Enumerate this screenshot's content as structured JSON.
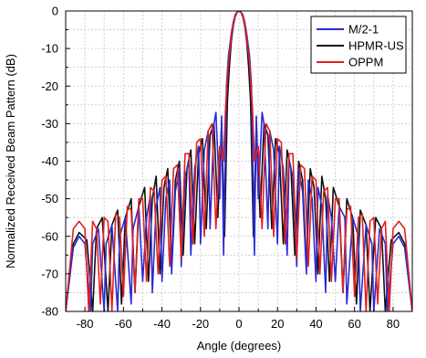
{
  "chart_data": {
    "type": "line",
    "title": "",
    "xlabel": "Angle (degrees)",
    "ylabel": "Normalized Received Beam Pattern (dB)",
    "xlim": [
      -90,
      90
    ],
    "ylim": [
      -80,
      0
    ],
    "xticks": [
      -80,
      -60,
      -40,
      -20,
      0,
      20,
      40,
      60,
      80
    ],
    "yticks": [
      0,
      -10,
      -20,
      -30,
      -40,
      -50,
      -60,
      -70,
      -80
    ],
    "grid": true,
    "legend_position": "top-right",
    "series": [
      {
        "name": "M/2-1",
        "color": "#2a2ad8",
        "x": [
          -90,
          -86,
          -83,
          -80,
          -77,
          -76,
          -73,
          -70,
          -69,
          -66,
          -63,
          -62,
          -59,
          -56,
          -55,
          -52,
          -50,
          -48,
          -46,
          -45,
          -43,
          -41,
          -40,
          -38,
          -36,
          -35,
          -33,
          -31,
          -30,
          -28,
          -26,
          -25,
          -23,
          -21,
          -20,
          -18,
          -16,
          -15,
          -13,
          -12,
          -10,
          -9,
          -8,
          -6.5,
          -5.5,
          -4,
          -3,
          -2,
          -1,
          0,
          1,
          2,
          3,
          4,
          5.5,
          6.5,
          8,
          9,
          10,
          12,
          13,
          15,
          16,
          18,
          20,
          21,
          23,
          25,
          26,
          28,
          30,
          31,
          33,
          35,
          36,
          38,
          40,
          41,
          43,
          45,
          46,
          48,
          50,
          52,
          55,
          56,
          59,
          62,
          63,
          66,
          69,
          70,
          73,
          76,
          77,
          80,
          83,
          86,
          90
        ],
        "y": [
          -80,
          -63,
          -60,
          -62,
          -80,
          -62,
          -58,
          -80,
          -62,
          -57,
          -80,
          -60,
          -55,
          -78,
          -58,
          -52,
          -72,
          -55,
          -49,
          -75,
          -52,
          -47,
          -72,
          -50,
          -45,
          -70,
          -48,
          -42,
          -68,
          -44,
          -40,
          -65,
          -42,
          -36,
          -62,
          -37,
          -32,
          -58,
          -30,
          -27,
          -50,
          -28,
          -65,
          -20,
          -12,
          -6,
          -3,
          -1,
          -0.3,
          0,
          -0.3,
          -1,
          -3,
          -6,
          -12,
          -20,
          -65,
          -28,
          -50,
          -27,
          -30,
          -58,
          -32,
          -37,
          -62,
          -36,
          -42,
          -65,
          -40,
          -44,
          -68,
          -42,
          -48,
          -70,
          -45,
          -50,
          -72,
          -47,
          -52,
          -75,
          -49,
          -55,
          -72,
          -52,
          -55,
          -78,
          -55,
          -60,
          -80,
          -57,
          -62,
          -80,
          -58,
          -62,
          -80,
          -62,
          -60,
          -63,
          -80
        ]
      },
      {
        "name": "HPMR-US",
        "color": "#111111",
        "x": [
          -90,
          -86,
          -83,
          -79,
          -76,
          -74,
          -71,
          -68,
          -66,
          -63,
          -61,
          -59,
          -56,
          -54,
          -52,
          -49,
          -47,
          -45,
          -43,
          -41,
          -39,
          -37,
          -35,
          -33,
          -31,
          -29,
          -27,
          -25,
          -23,
          -21,
          -19,
          -17,
          -15,
          -13,
          -11,
          -9,
          -7.5,
          -6,
          -5,
          -4,
          -3,
          -2,
          -1,
          0,
          1,
          2,
          3,
          4,
          5,
          6,
          7.5,
          9,
          11,
          13,
          15,
          17,
          19,
          21,
          23,
          25,
          27,
          29,
          31,
          33,
          35,
          37,
          39,
          41,
          43,
          45,
          47,
          49,
          52,
          54,
          56,
          59,
          61,
          63,
          66,
          68,
          71,
          74,
          76,
          79,
          83,
          86,
          90
        ],
        "y": [
          -80,
          -62,
          -59,
          -61,
          -80,
          -58,
          -55,
          -80,
          -57,
          -53,
          -78,
          -55,
          -50,
          -75,
          -52,
          -47,
          -72,
          -50,
          -44,
          -70,
          -47,
          -42,
          -68,
          -45,
          -40,
          -65,
          -42,
          -37,
          -62,
          -38,
          -34,
          -58,
          -33,
          -30,
          -55,
          -30,
          -60,
          -24,
          -15,
          -8,
          -4,
          -1.5,
          -0.4,
          0,
          -0.4,
          -1.5,
          -4,
          -8,
          -15,
          -24,
          -60,
          -30,
          -55,
          -30,
          -33,
          -58,
          -34,
          -38,
          -62,
          -37,
          -42,
          -65,
          -40,
          -45,
          -68,
          -42,
          -47,
          -70,
          -44,
          -50,
          -72,
          -47,
          -52,
          -75,
          -50,
          -55,
          -78,
          -53,
          -57,
          -80,
          -55,
          -58,
          -80,
          -61,
          -59,
          -62,
          -80
        ]
      },
      {
        "name": "OPPM",
        "color": "#e02020",
        "x": [
          -90,
          -86,
          -83,
          -80,
          -78,
          -76,
          -74,
          -72,
          -70,
          -68,
          -66,
          -64,
          -62,
          -60,
          -58,
          -56,
          -54,
          -52,
          -50,
          -48,
          -46,
          -44,
          -42,
          -40,
          -38,
          -36,
          -34,
          -32,
          -30,
          -28,
          -26,
          -24,
          -22,
          -20,
          -18,
          -16,
          -14,
          -12,
          -10,
          -8,
          -7,
          -5.5,
          -4,
          -3,
          -2,
          -1,
          0,
          1,
          2,
          3,
          4,
          5.5,
          7,
          8,
          10,
          12,
          14,
          16,
          18,
          20,
          22,
          24,
          26,
          28,
          30,
          32,
          34,
          36,
          38,
          40,
          42,
          44,
          46,
          48,
          50,
          52,
          54,
          56,
          58,
          60,
          62,
          64,
          66,
          68,
          70,
          72,
          74,
          76,
          78,
          80,
          83,
          86,
          90
        ],
        "y": [
          -80,
          -58,
          -56,
          -58,
          -80,
          -56,
          -58,
          -78,
          -55,
          -56,
          -80,
          -54,
          -55,
          -76,
          -52,
          -53,
          -75,
          -50,
          -50,
          -72,
          -47,
          -48,
          -70,
          -45,
          -44,
          -68,
          -42,
          -41,
          -66,
          -38,
          -38,
          -62,
          -35,
          -34,
          -60,
          -32,
          -30,
          -58,
          -36,
          -40,
          -26,
          -14,
          -7,
          -3.5,
          -1.2,
          -0.3,
          0,
          -0.3,
          -1.2,
          -3.5,
          -7,
          -14,
          -26,
          -40,
          -36,
          -58,
          -30,
          -32,
          -60,
          -34,
          -35,
          -62,
          -38,
          -38,
          -66,
          -41,
          -42,
          -68,
          -44,
          -45,
          -70,
          -48,
          -47,
          -72,
          -50,
          -50,
          -75,
          -53,
          -52,
          -76,
          -55,
          -54,
          -80,
          -56,
          -55,
          -78,
          -58,
          -56,
          -80,
          -58,
          -56,
          -58,
          -80
        ]
      }
    ]
  }
}
